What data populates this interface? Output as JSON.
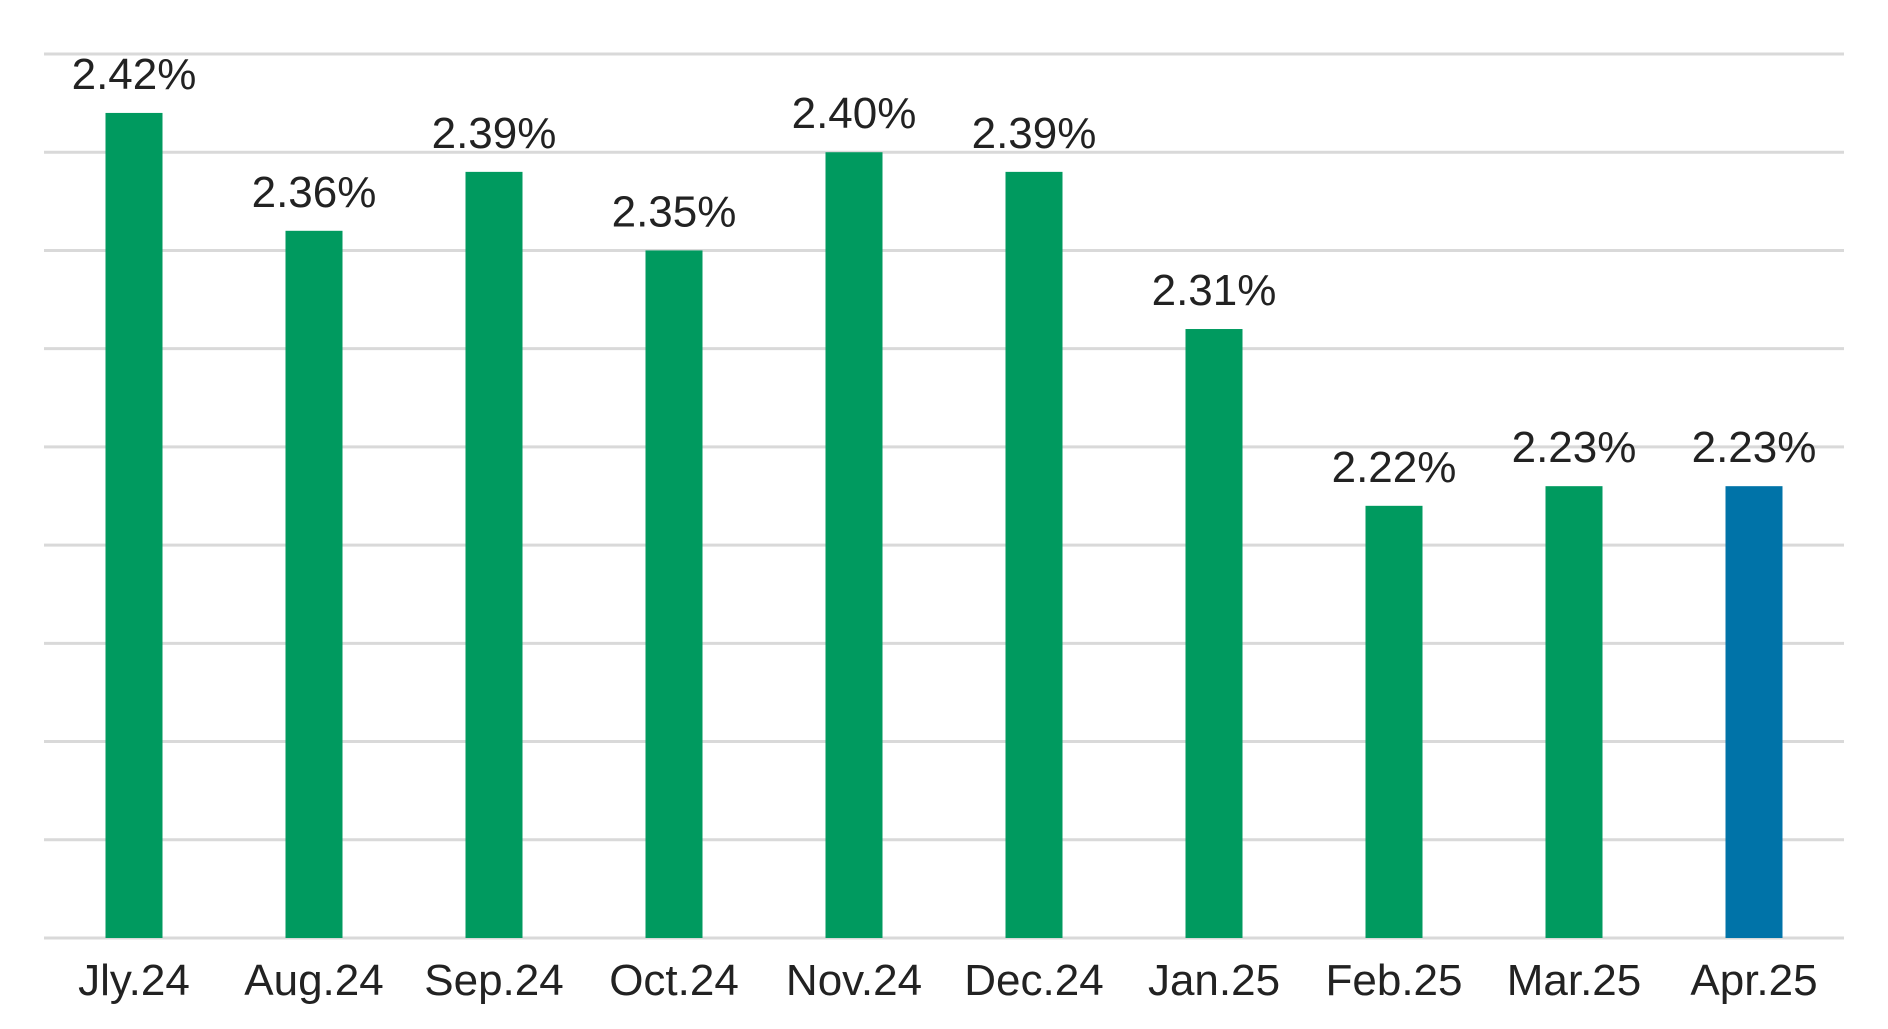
{
  "chart_data": {
    "type": "bar",
    "title": "",
    "xlabel": "",
    "ylabel": "",
    "categories": [
      "Jly.24",
      "Aug.24",
      "Sep.24",
      "Oct.24",
      "Nov.24",
      "Dec.24",
      "Jan.25",
      "Feb.25",
      "Mar.25",
      "Apr.25"
    ],
    "values": [
      2.42,
      2.36,
      2.39,
      2.35,
      2.4,
      2.39,
      2.31,
      2.22,
      2.23,
      2.23
    ],
    "data_labels": [
      "2.42%",
      "2.36%",
      "2.39%",
      "2.35%",
      "2.40%",
      "2.39%",
      "2.31%",
      "2.22%",
      "2.23%",
      "2.23%"
    ],
    "ylim": [
      2.0,
      2.45
    ],
    "gridlines": [
      2.0,
      2.05,
      2.1,
      2.15,
      2.2,
      2.25,
      2.3,
      2.35,
      2.4,
      2.45
    ],
    "grid": true,
    "legend": "none",
    "colors": {
      "bar": "#009a5f",
      "highlight": "#0073a8",
      "grid": "#d9d9d9",
      "text": "#222222"
    },
    "highlight_index": 9
  }
}
